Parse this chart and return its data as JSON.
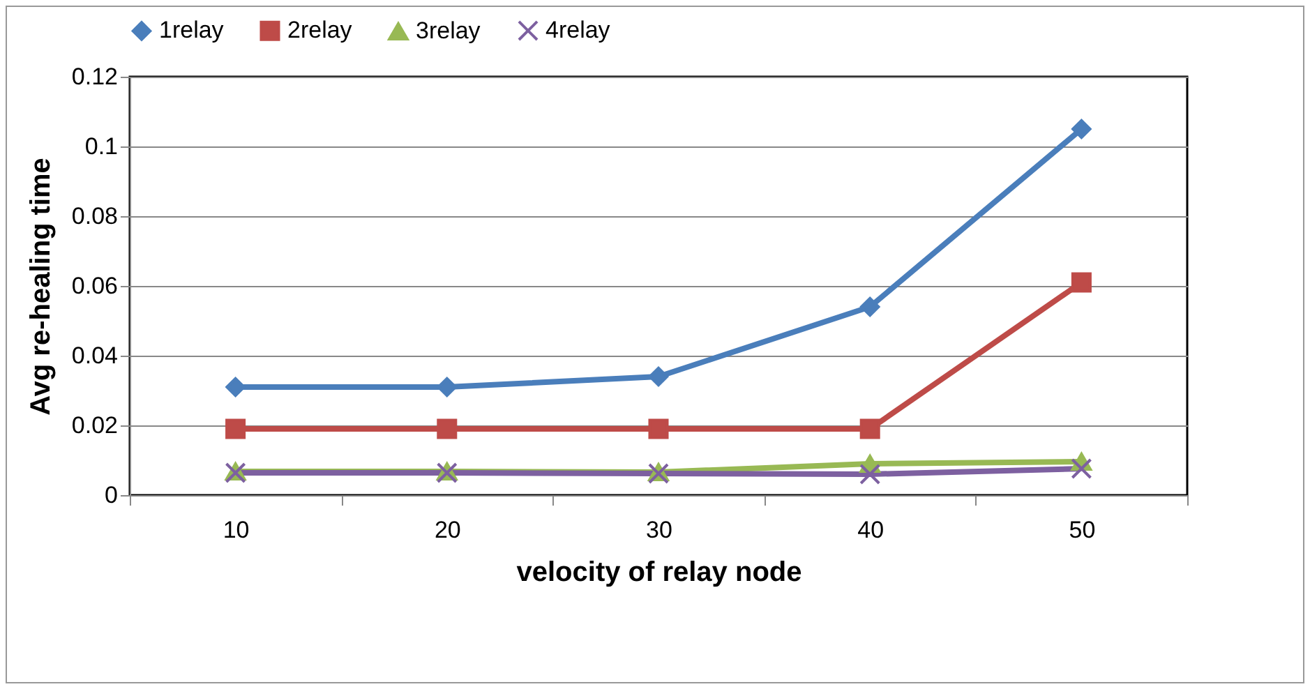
{
  "chart_data": {
    "type": "line",
    "xlabel": "velocity of relay node",
    "ylabel": "Avg re-healing time",
    "categories": [
      "10",
      "20",
      "30",
      "40",
      "50"
    ],
    "series": [
      {
        "name": "1relay",
        "color": "#4a7ebb",
        "marker": "diamond",
        "values": [
          0.031,
          0.031,
          0.034,
          0.054,
          0.105
        ]
      },
      {
        "name": "2relay",
        "color": "#be4b48",
        "marker": "square",
        "values": [
          0.019,
          0.019,
          0.019,
          0.019,
          0.061
        ]
      },
      {
        "name": "3relay",
        "color": "#98b954",
        "marker": "triangle",
        "values": [
          0.0068,
          0.0068,
          0.0066,
          0.009,
          0.0096
        ]
      },
      {
        "name": "4relay",
        "color": "#7d60a0",
        "marker": "cross",
        "values": [
          0.0064,
          0.0064,
          0.0062,
          0.006,
          0.0076
        ]
      }
    ],
    "ylim": [
      0,
      0.12
    ],
    "yticks": [
      {
        "value": 0,
        "label": "0"
      },
      0.02,
      0.04,
      0.06,
      0.08,
      {
        "value": 0.1,
        "label": "0.1"
      },
      0.12
    ],
    "grid": "y",
    "legend": "top"
  }
}
